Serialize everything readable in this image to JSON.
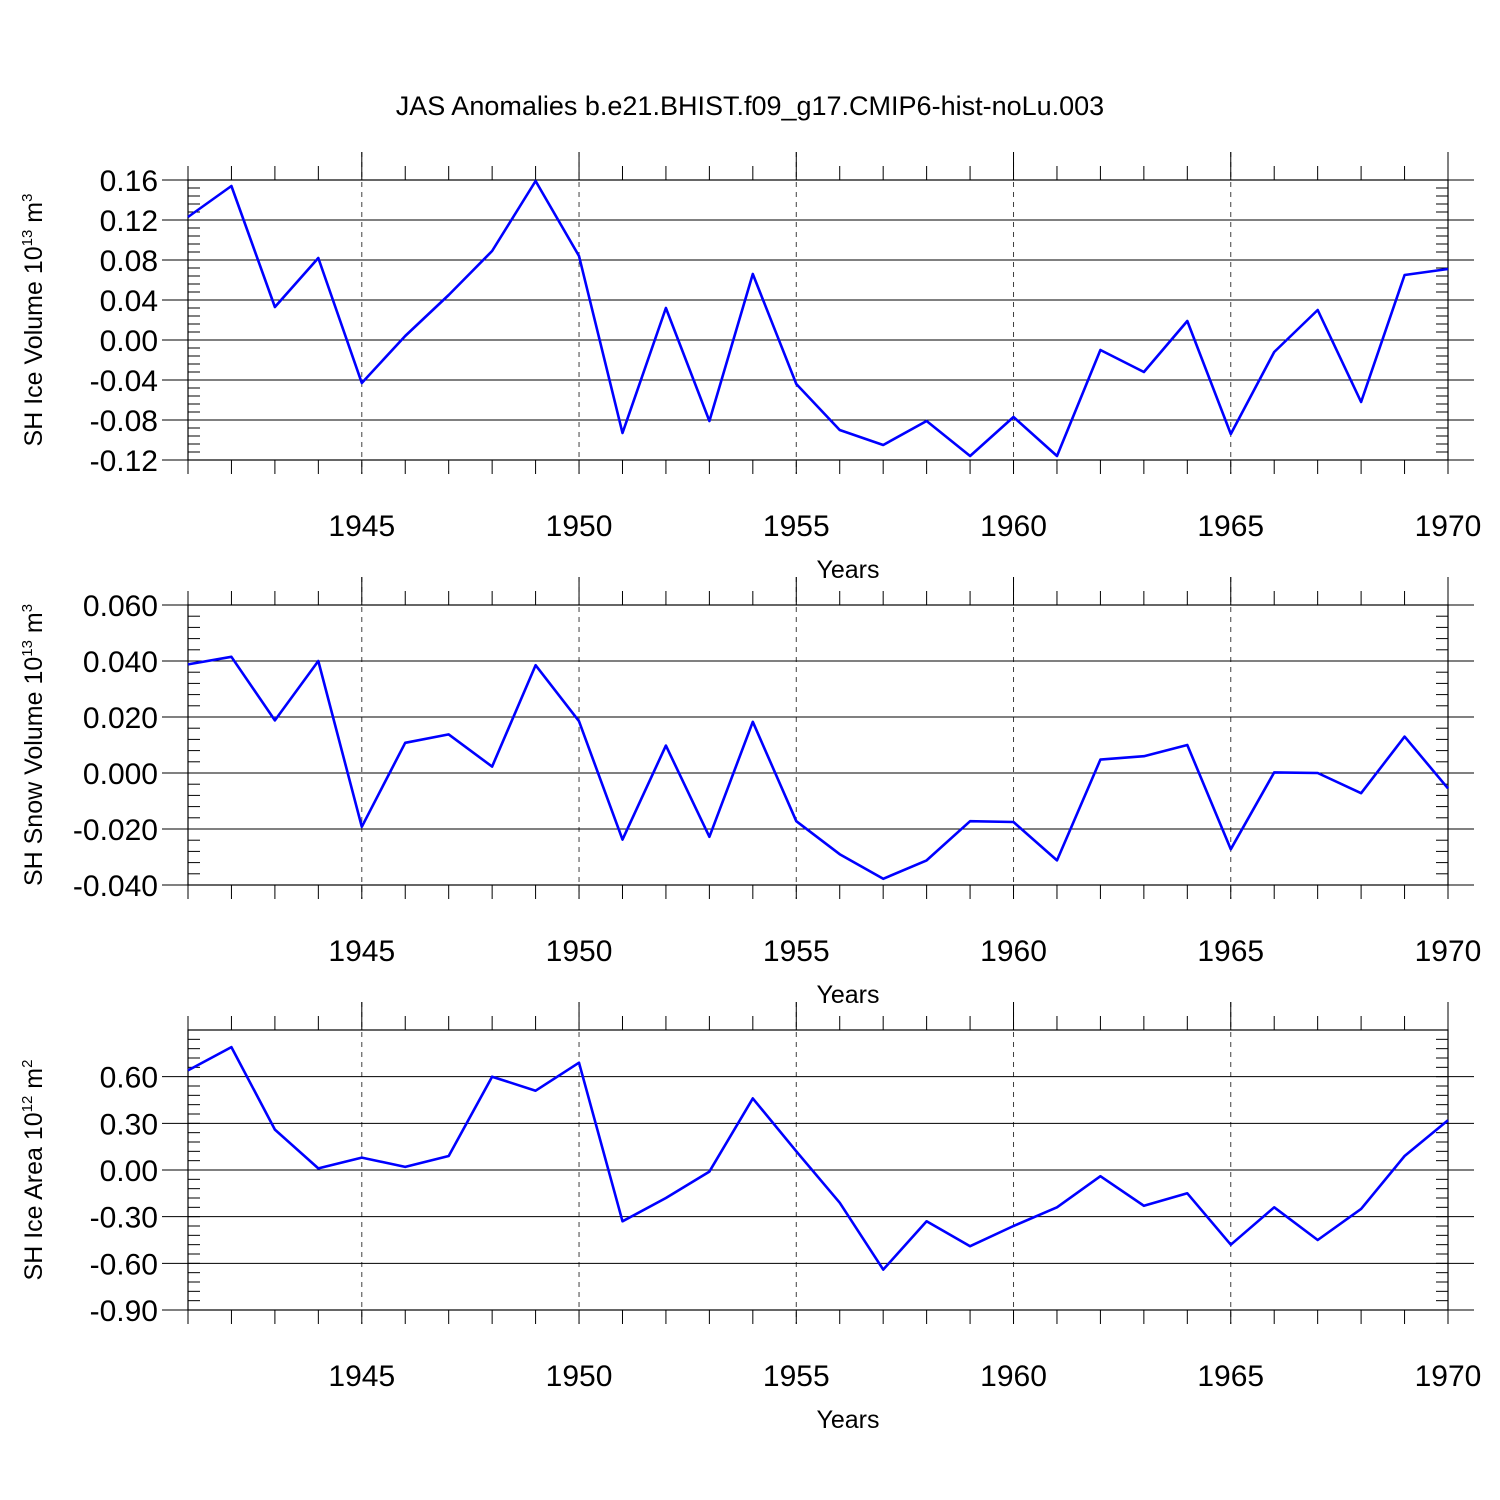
{
  "title": "JAS Anomalies b.e21.BHIST.f09_g17.CMIP6-hist-noLu.003",
  "colors": {
    "series": "#0000ff",
    "axes": "#000000"
  },
  "chart_data": [
    {
      "type": "line",
      "xlabel": "Years",
      "ylabel_main": "SH Ice Volume 10",
      "ylabel_sup": "13",
      "ylabel_unit": " m",
      "ylabel_unit_sup": "3",
      "xlim": [
        1941,
        1970
      ],
      "ylim": [
        -0.12,
        0.16
      ],
      "yticks": [
        -0.12,
        -0.08,
        -0.04,
        0.0,
        0.04,
        0.08,
        0.12,
        0.16
      ],
      "ytick_labels": [
        "-0.12",
        "-0.08",
        "-0.04",
        "0.00",
        "0.04",
        "0.08",
        "0.12",
        "0.16"
      ],
      "yminor_step": 0.008,
      "xticks": [
        1945,
        1950,
        1955,
        1960,
        1965,
        1970
      ],
      "xtick_labels": [
        "1945",
        "1950",
        "1955",
        "1960",
        "1965",
        "1970"
      ],
      "grid_x": [
        1945,
        1950,
        1955,
        1960,
        1965
      ],
      "x": [
        1941,
        1942,
        1943,
        1944,
        1945,
        1946,
        1947,
        1948,
        1949,
        1950,
        1951,
        1952,
        1953,
        1954,
        1955,
        1956,
        1957,
        1958,
        1959,
        1960,
        1961,
        1962,
        1963,
        1964,
        1965,
        1966,
        1967,
        1968,
        1969,
        1970
      ],
      "y": [
        0.123,
        0.154,
        0.033,
        0.082,
        -0.043,
        0.004,
        0.045,
        0.089,
        0.159,
        0.084,
        -0.093,
        0.032,
        -0.081,
        0.066,
        -0.044,
        -0.09,
        -0.105,
        -0.081,
        -0.116,
        -0.077,
        -0.116,
        -0.01,
        -0.032,
        0.019,
        -0.094,
        -0.012,
        0.03,
        -0.062,
        0.065,
        0.071
      ]
    },
    {
      "type": "line",
      "xlabel": "Years",
      "ylabel_main": "SH Snow Volume 10",
      "ylabel_sup": "13",
      "ylabel_unit": " m",
      "ylabel_unit_sup": "3",
      "xlim": [
        1941,
        1970
      ],
      "ylim": [
        -0.04,
        0.06
      ],
      "yticks": [
        -0.04,
        -0.02,
        0.0,
        0.02,
        0.04,
        0.06
      ],
      "ytick_labels": [
        "-0.040",
        "-0.020",
        "0.000",
        "0.020",
        "0.040",
        "0.060"
      ],
      "yminor_step": 0.004,
      "xticks": [
        1945,
        1950,
        1955,
        1960,
        1965,
        1970
      ],
      "xtick_labels": [
        "1945",
        "1950",
        "1955",
        "1960",
        "1965",
        "1970"
      ],
      "grid_x": [
        1945,
        1950,
        1955,
        1960,
        1965
      ],
      "x": [
        1941,
        1942,
        1943,
        1944,
        1945,
        1946,
        1947,
        1948,
        1949,
        1950,
        1951,
        1952,
        1953,
        1954,
        1955,
        1956,
        1957,
        1958,
        1959,
        1960,
        1961,
        1962,
        1963,
        1964,
        1965,
        1966,
        1967,
        1968,
        1969,
        1970
      ],
      "y": [
        0.0388,
        0.0415,
        0.0188,
        0.04,
        -0.0192,
        0.0108,
        0.0138,
        0.0023,
        0.0385,
        0.0185,
        -0.0238,
        0.0098,
        -0.0228,
        0.0183,
        -0.0172,
        -0.029,
        -0.0378,
        -0.0312,
        -0.0172,
        -0.0175,
        -0.0312,
        0.0048,
        0.006,
        0.01,
        -0.0272,
        0.0002,
        0.0,
        -0.0072,
        0.013,
        -0.0055
      ]
    },
    {
      "type": "line",
      "xlabel": "Years",
      "ylabel_main": "SH Ice Area 10",
      "ylabel_sup": "12",
      "ylabel_unit": " m",
      "ylabel_unit_sup": "2",
      "xlim": [
        1941,
        1970
      ],
      "ylim": [
        -0.9,
        0.9
      ],
      "yticks": [
        -0.9,
        -0.6,
        -0.3,
        0.0,
        0.3,
        0.6
      ],
      "ytick_labels": [
        "-0.90",
        "-0.60",
        "-0.30",
        "0.00",
        "0.30",
        "0.60"
      ],
      "yminor_step": 0.06,
      "xticks": [
        1945,
        1950,
        1955,
        1960,
        1965,
        1970
      ],
      "xtick_labels": [
        "1945",
        "1950",
        "1955",
        "1960",
        "1965",
        "1970"
      ],
      "grid_x": [
        1945,
        1950,
        1955,
        1960,
        1965
      ],
      "x": [
        1941,
        1942,
        1943,
        1944,
        1945,
        1946,
        1947,
        1948,
        1949,
        1950,
        1951,
        1952,
        1953,
        1954,
        1955,
        1956,
        1957,
        1958,
        1959,
        1960,
        1961,
        1962,
        1963,
        1964,
        1965,
        1966,
        1967,
        1968,
        1969,
        1970
      ],
      "y": [
        0.64,
        0.79,
        0.26,
        0.01,
        0.08,
        0.02,
        0.09,
        0.6,
        0.51,
        0.69,
        -0.33,
        -0.18,
        -0.01,
        0.46,
        0.12,
        -0.21,
        -0.64,
        -0.33,
        -0.49,
        -0.36,
        -0.24,
        -0.04,
        -0.23,
        -0.15,
        -0.48,
        -0.24,
        -0.45,
        -0.25,
        0.09,
        0.32
      ]
    }
  ]
}
